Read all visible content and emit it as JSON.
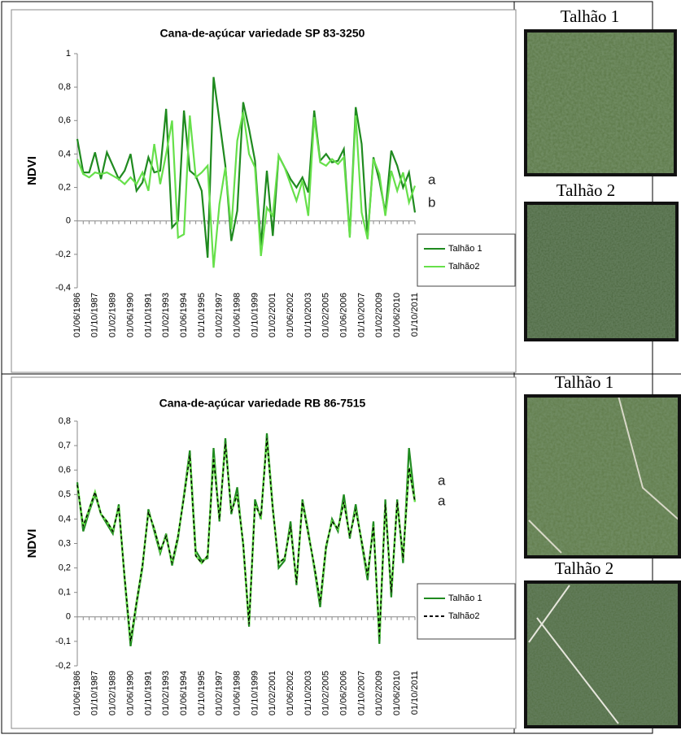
{
  "chart_data": [
    {
      "type": "line",
      "title": "Cana-de-açúcar variedade SP 83-3250",
      "y_label": "NDVI",
      "categories": [
        "01/06/1986",
        null,
        null,
        "01/10/1987",
        null,
        null,
        "01/02/1989",
        null,
        null,
        "01/06/1990",
        null,
        null,
        "01/10/1991",
        null,
        null,
        "01/02/1993",
        null,
        null,
        "01/06/1994",
        null,
        null,
        "01/10/1995",
        null,
        null,
        "01/02/1997",
        null,
        null,
        "01/06/1998",
        null,
        null,
        "01/10/1999",
        null,
        null,
        "01/02/2001",
        null,
        null,
        "01/06/2002",
        null,
        null,
        "01/10/2003",
        null,
        null,
        "01/02/2005",
        null,
        null,
        "01/06/2006",
        null,
        null,
        "01/10/2007",
        null,
        null,
        "01/02/2009",
        null,
        null,
        "01/06/2010",
        null,
        null,
        "01/10/2011"
      ],
      "series": [
        {
          "name": "Talhão 1",
          "color": "#1f8a1f",
          "values": [
            0.49,
            0.29,
            0.29,
            0.41,
            0.25,
            0.41,
            0.33,
            0.25,
            0.3,
            0.4,
            0.18,
            0.23,
            0.38,
            0.29,
            0.3,
            0.67,
            -0.04,
            0.0,
            0.66,
            0.3,
            0.27,
            0.18,
            -0.22,
            0.86,
            0.6,
            0.33,
            -0.12,
            0.06,
            0.71,
            0.55,
            0.36,
            -0.15,
            0.3,
            -0.09,
            0.39,
            0.32,
            0.25,
            0.2,
            0.26,
            0.17,
            0.66,
            0.36,
            0.4,
            0.35,
            0.36,
            0.43,
            -0.09,
            0.68,
            0.46,
            -0.1,
            0.38,
            0.24,
            0.05,
            0.42,
            0.33,
            0.2,
            0.29,
            0.05
          ]
        },
        {
          "name": "Talhão2",
          "color": "#66e04a",
          "values": [
            0.37,
            0.28,
            0.26,
            0.29,
            0.28,
            0.29,
            0.27,
            0.25,
            0.22,
            0.26,
            0.22,
            0.29,
            0.18,
            0.46,
            0.22,
            0.4,
            0.6,
            -0.1,
            -0.08,
            0.63,
            0.26,
            0.29,
            0.33,
            -0.28,
            0.1,
            0.32,
            -0.05,
            0.48,
            0.65,
            0.4,
            0.32,
            -0.21,
            0.08,
            0.03,
            0.39,
            0.32,
            0.22,
            0.12,
            0.24,
            0.03,
            0.62,
            0.35,
            0.33,
            0.37,
            0.34,
            0.38,
            -0.1,
            0.63,
            0.05,
            -0.11,
            0.37,
            0.28,
            0.03,
            0.3,
            0.18,
            0.29,
            0.11,
            0.21
          ]
        }
      ],
      "ylim": [
        -0.4,
        1
      ],
      "yticks": [
        {
          "value": -0.4,
          "label": "-0,4"
        },
        {
          "value": -0.2,
          "label": "-0,2"
        },
        0,
        {
          "value": 0.2,
          "label": "0,2"
        },
        {
          "value": 0.4,
          "label": "0,4"
        },
        {
          "value": 0.6,
          "label": "0,6"
        },
        {
          "value": 0.8,
          "label": "0,8"
        },
        1
      ],
      "grid": false,
      "annotations": [
        "a",
        "b"
      ]
    },
    {
      "type": "line",
      "title": "Cana-de-açúcar variedade RB 86-7515",
      "y_label": "NDVI",
      "categories": [
        "01/06/1986",
        null,
        null,
        "01/10/1987",
        null,
        null,
        "01/02/1989",
        null,
        null,
        "01/06/1990",
        null,
        null,
        "01/10/1991",
        null,
        null,
        "01/02/1993",
        null,
        null,
        "01/06/1994",
        null,
        null,
        "01/10/1995",
        null,
        null,
        "01/02/1997",
        null,
        null,
        "01/06/1998",
        null,
        null,
        "01/10/1999",
        null,
        null,
        "01/02/2001",
        null,
        null,
        "01/06/2002",
        null,
        null,
        "01/10/2003",
        null,
        null,
        "01/02/2005",
        null,
        null,
        "01/06/2006",
        null,
        null,
        "01/10/2007",
        null,
        null,
        "01/02/2009",
        null,
        null,
        "01/06/2010",
        null,
        null,
        "01/10/2011"
      ],
      "series": [
        {
          "name": "Talhão 1",
          "color": "#1f8a1f",
          "values": [
            0.55,
            0.35,
            0.43,
            0.5,
            0.42,
            0.38,
            0.34,
            0.46,
            0.15,
            -0.12,
            0.05,
            0.2,
            0.44,
            0.35,
            0.26,
            0.34,
            0.21,
            0.32,
            0.5,
            0.68,
            0.27,
            0.23,
            0.24,
            0.69,
            0.39,
            0.73,
            0.42,
            0.53,
            0.29,
            -0.04,
            0.48,
            0.4,
            0.75,
            0.45,
            0.2,
            0.23,
            0.39,
            0.13,
            0.48,
            0.35,
            0.2,
            0.04,
            0.28,
            0.4,
            0.35,
            0.5,
            0.32,
            0.46,
            0.3,
            0.15,
            0.39,
            -0.11,
            0.48,
            0.08,
            0.48,
            0.22,
            0.69,
            0.47
          ]
        },
        {
          "name": "Talhão2",
          "color": "#000000",
          "dashed": true,
          "values": [
            0.54,
            0.37,
            0.44,
            0.51,
            0.42,
            0.39,
            0.35,
            0.45,
            0.16,
            -0.1,
            0.06,
            0.21,
            0.43,
            0.36,
            0.27,
            0.33,
            0.22,
            0.33,
            0.49,
            0.66,
            0.25,
            0.22,
            0.25,
            0.65,
            0.4,
            0.71,
            0.43,
            0.5,
            0.3,
            -0.03,
            0.46,
            0.41,
            0.73,
            0.44,
            0.22,
            0.24,
            0.37,
            0.14,
            0.47,
            0.34,
            0.21,
            0.06,
            0.29,
            0.39,
            0.36,
            0.47,
            0.33,
            0.44,
            0.31,
            0.17,
            0.37,
            -0.08,
            0.46,
            0.1,
            0.47,
            0.24,
            0.61,
            0.47
          ]
        }
      ],
      "ylim": [
        -0.2,
        0.8
      ],
      "yticks": [
        {
          "value": -0.2,
          "label": "-0,2"
        },
        {
          "value": -0.1,
          "label": "-0,1"
        },
        0,
        {
          "value": 0.1,
          "label": "0,1"
        },
        {
          "value": 0.2,
          "label": "0,2"
        },
        {
          "value": 0.3,
          "label": "0,3"
        },
        {
          "value": 0.4,
          "label": "0,4"
        },
        {
          "value": 0.5,
          "label": "0,5"
        },
        {
          "value": 0.6,
          "label": "0,6"
        },
        {
          "value": 0.7,
          "label": "0,7"
        },
        {
          "value": 0.8,
          "label": "0,8"
        }
      ],
      "grid": false,
      "annotations": [
        "a",
        "a"
      ]
    }
  ],
  "images": [
    {
      "label": "Talhão 1"
    },
    {
      "label": "Talhão 2"
    },
    {
      "label": "Talhão 1"
    },
    {
      "label": "Talhão 2"
    }
  ]
}
